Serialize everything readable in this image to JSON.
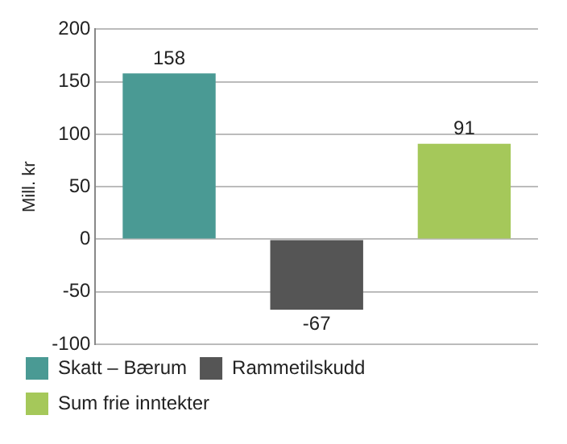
{
  "chart_data": {
    "type": "bar",
    "ylabel": "Mill. kr",
    "categories": [
      null,
      null,
      null
    ],
    "series": [
      {
        "name": "Skatt – Bærum",
        "color": "#4a9a94",
        "values": [
          158,
          null,
          null
        ]
      },
      {
        "name": "Rammetilskudd",
        "color": "#555555",
        "values": [
          null,
          -67,
          null
        ]
      },
      {
        "name": "Sum frie inntekter",
        "color": "#a5c85a",
        "values": [
          null,
          null,
          91
        ]
      }
    ],
    "ylim": [
      -100,
      200
    ],
    "yticks": [
      -100,
      -50,
      0,
      50,
      100,
      150,
      200
    ],
    "grid": "y",
    "legend": "bottom",
    "data_labels": true
  }
}
